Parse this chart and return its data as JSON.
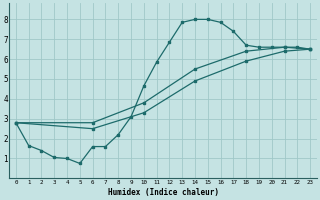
{
  "xlabel": "Humidex (Indice chaleur)",
  "xlim": [
    -0.5,
    23.5
  ],
  "ylim": [
    0,
    8.8
  ],
  "xticks": [
    0,
    1,
    2,
    3,
    4,
    5,
    6,
    7,
    8,
    9,
    10,
    11,
    12,
    13,
    14,
    15,
    16,
    17,
    18,
    19,
    20,
    21,
    22,
    23
  ],
  "yticks": [
    1,
    2,
    3,
    4,
    5,
    6,
    7,
    8
  ],
  "bg_color": "#c5e3e3",
  "line_color": "#1d6b6b",
  "grid_color": "#a0c8c8",
  "curve1_x": [
    0,
    1,
    2,
    3,
    4,
    5,
    6,
    7,
    8,
    9,
    10,
    11,
    12,
    13,
    14,
    15,
    16,
    17,
    18,
    19,
    20,
    21,
    22,
    23
  ],
  "curve1_y": [
    2.8,
    1.65,
    1.4,
    1.05,
    1.0,
    0.75,
    1.6,
    1.6,
    2.2,
    3.1,
    4.65,
    5.85,
    6.85,
    7.85,
    8.0,
    8.0,
    7.85,
    7.4,
    6.7,
    6.6,
    6.6,
    6.6,
    6.6,
    6.5
  ],
  "curve2_x": [
    0,
    6,
    10,
    14,
    18,
    21,
    23
  ],
  "curve2_y": [
    2.8,
    2.8,
    3.8,
    5.5,
    6.4,
    6.6,
    6.5
  ],
  "curve3_x": [
    0,
    6,
    10,
    14,
    18,
    21,
    23
  ],
  "curve3_y": [
    2.8,
    2.5,
    3.3,
    4.9,
    5.9,
    6.4,
    6.5
  ]
}
